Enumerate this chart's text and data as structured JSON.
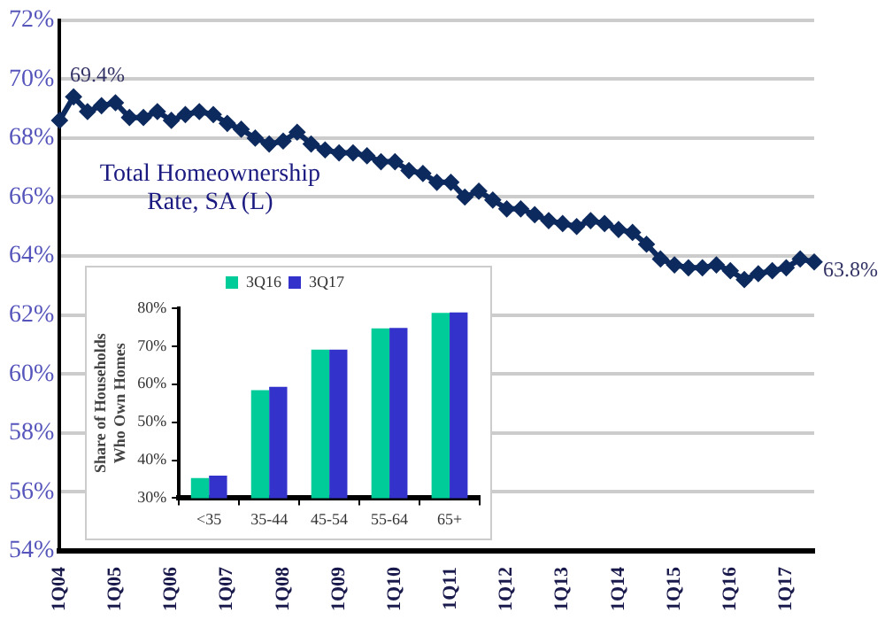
{
  "chart_data": [
    {
      "type": "line",
      "categories": [
        "1Q04",
        null,
        null,
        null,
        "1Q05",
        null,
        null,
        null,
        "1Q06",
        null,
        null,
        null,
        "1Q07",
        null,
        null,
        null,
        "1Q08",
        null,
        null,
        null,
        "1Q09",
        null,
        null,
        null,
        "1Q10",
        null,
        null,
        null,
        "1Q11",
        null,
        null,
        null,
        "1Q12",
        null,
        null,
        null,
        "1Q13",
        null,
        null,
        null,
        "1Q14",
        null,
        null,
        null,
        "1Q15",
        null,
        null,
        null,
        "1Q16",
        null,
        null,
        null,
        "1Q17",
        null,
        null
      ],
      "series": [
        {
          "color": "#0d2a5e",
          "values": [
            68.6,
            69.4,
            68.9,
            69.1,
            69.2,
            68.7,
            68.7,
            68.9,
            68.6,
            68.8,
            68.9,
            68.8,
            68.5,
            68.3,
            68.0,
            67.8,
            67.9,
            68.2,
            67.8,
            67.6,
            67.5,
            67.5,
            67.4,
            67.2,
            67.2,
            66.9,
            66.8,
            66.5,
            66.5,
            66.0,
            66.2,
            65.9,
            65.6,
            65.6,
            65.4,
            65.2,
            65.1,
            65.0,
            65.2,
            65.1,
            64.9,
            64.8,
            64.4,
            63.9,
            63.7,
            63.6,
            63.6,
            63.7,
            63.5,
            63.2,
            63.4,
            63.5,
            63.6,
            63.9,
            63.8
          ],
          "value_labels": [
            null,
            "69.4%",
            null,
            null,
            null,
            null,
            null,
            null,
            null,
            null,
            null,
            null,
            null,
            null,
            null,
            null,
            null,
            null,
            null,
            null,
            null,
            null,
            null,
            null,
            null,
            null,
            null,
            null,
            null,
            null,
            null,
            null,
            null,
            null,
            null,
            null,
            null,
            null,
            null,
            null,
            null,
            null,
            null,
            null,
            null,
            null,
            null,
            null,
            null,
            null,
            null,
            null,
            null,
            null,
            "63.8%"
          ]
        }
      ],
      "ylim": [
        54,
        72
      ],
      "yticks": [
        {
          "value": 54,
          "label": "54%"
        },
        {
          "value": 56,
          "label": "56%"
        },
        {
          "value": 58,
          "label": "58%"
        },
        {
          "value": 60,
          "label": "60%"
        },
        {
          "value": 62,
          "label": "62%"
        },
        {
          "value": 64,
          "label": "64%"
        },
        {
          "value": 66,
          "label": "66%"
        },
        {
          "value": 68,
          "label": "68%"
        },
        {
          "value": 70,
          "label": "70%"
        },
        {
          "value": 72,
          "label": "72%"
        }
      ],
      "annotations": [
        "Total Homeownership Rate, SA (L)"
      ],
      "grid": "y",
      "marker": "diamond",
      "line_style": "solid",
      "legend": false
    },
    {
      "type": "bar",
      "categories": [
        "<35",
        "35-44",
        "45-54",
        "55-64",
        "65+"
      ],
      "series": [
        {
          "name": "3Q16",
          "color": "#00cc99",
          "values": [
            35.3,
            58.4,
            69.1,
            74.7,
            78.8
          ]
        },
        {
          "name": "3Q17",
          "color": "#3333cc",
          "values": [
            35.9,
            59.3,
            69.1,
            74.8,
            78.9
          ]
        }
      ],
      "ylim": [
        30,
        80
      ],
      "yticks": [
        {
          "value": 30,
          "label": "30%"
        },
        {
          "value": 40,
          "label": "40%"
        },
        {
          "value": 50,
          "label": "50%"
        },
        {
          "value": 60,
          "label": "60%"
        },
        {
          "value": 70,
          "label": "70%"
        },
        {
          "value": 80,
          "label": "80%"
        }
      ],
      "ylabel": "Share of Households Who Own Homes",
      "legend": "top",
      "grid": false
    }
  ]
}
